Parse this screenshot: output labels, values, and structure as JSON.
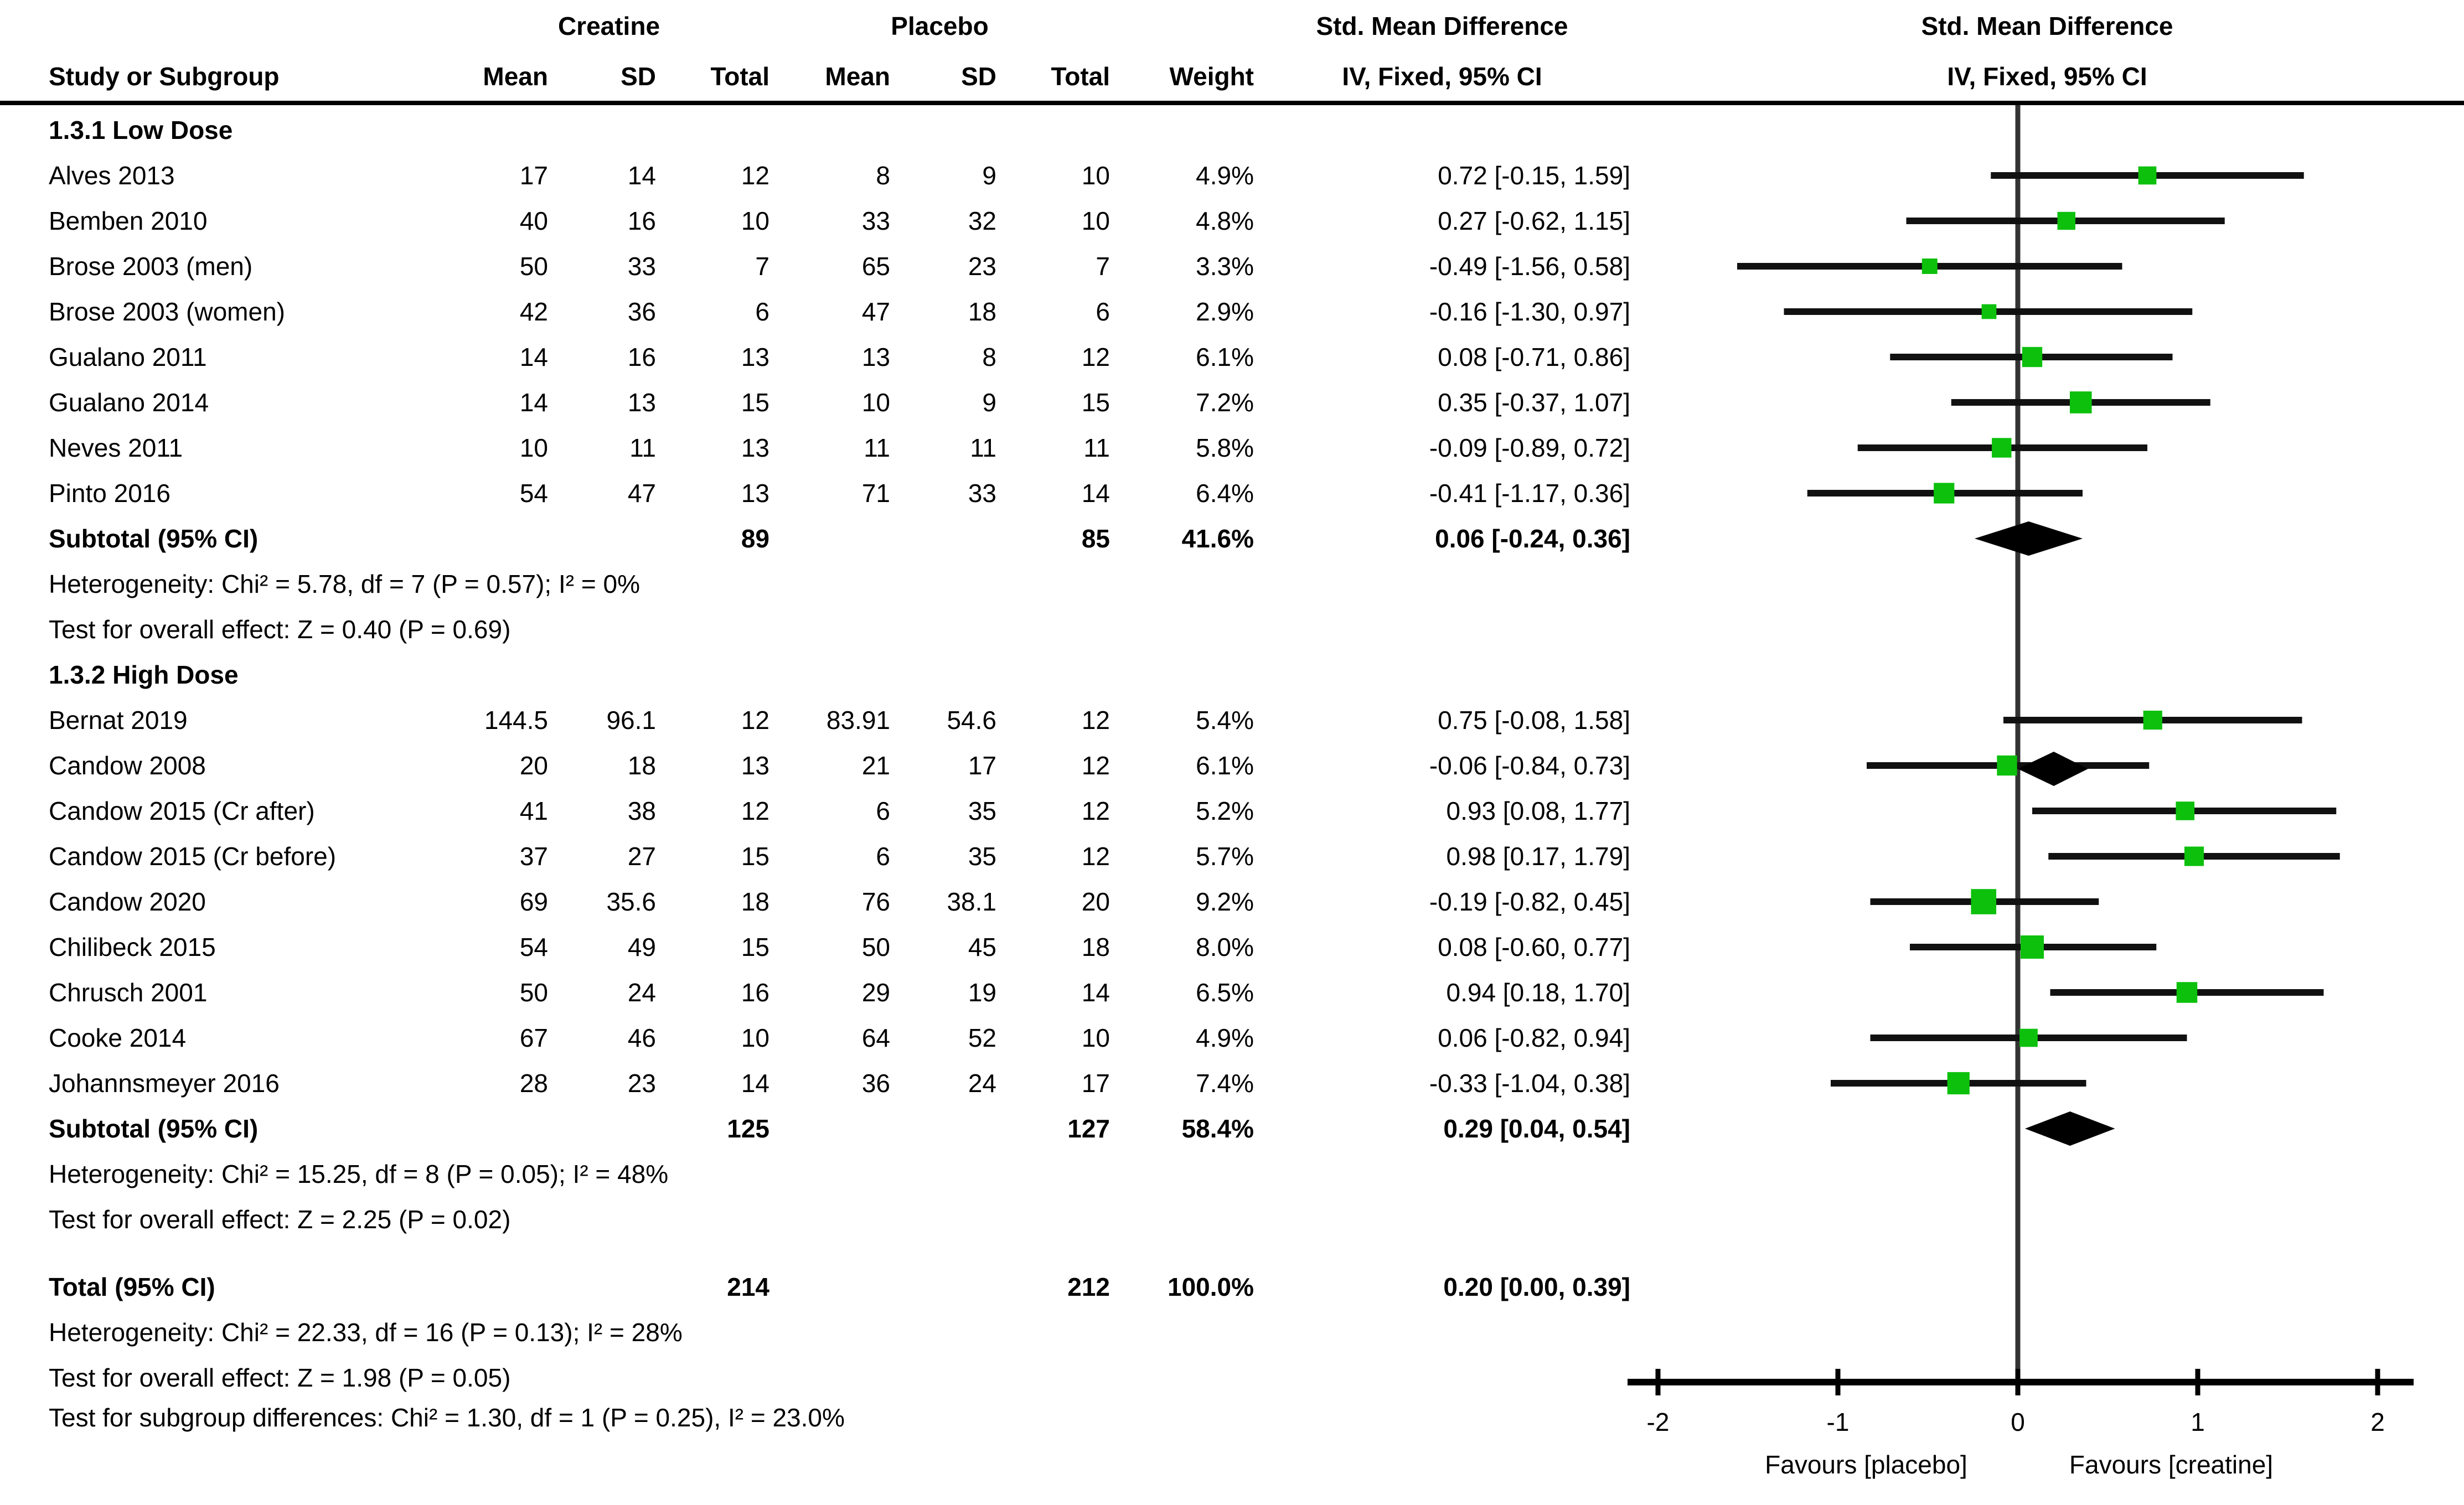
{
  "header": {
    "study_col": "Study or Subgroup",
    "creatine_group": "Creatine",
    "placebo_group": "Placebo",
    "smd_left": "Std. Mean Difference",
    "smd_right": "Std. Mean Difference",
    "mean": "Mean",
    "sd": "SD",
    "total": "Total",
    "weight": "Weight",
    "method_left": "IV, Fixed, 95% CI",
    "method_right": "IV, Fixed, 95% CI"
  },
  "colors": {
    "marker_green": "#0cc00c",
    "text": "#000000",
    "ci_line": "#111111",
    "zero_line": "#333333",
    "diamond": "#000000"
  },
  "chart_data": {
    "type": "forest",
    "effect_measure": "Std. Mean Difference, IV, Fixed, 95% CI",
    "axis": {
      "min": -2,
      "max": 2,
      "ticks": [
        -2,
        -1,
        0,
        1,
        2
      ],
      "tick_labels": [
        "-2",
        "-1",
        "0",
        "1",
        "2"
      ],
      "label_left": "Favours [placebo]",
      "label_right": "Favours [creatine]"
    },
    "groups": [
      {
        "label": "1.3.1 Low Dose",
        "studies": [
          {
            "name": "Alves 2013",
            "c_mean": "17",
            "c_sd": "14",
            "c_total": "12",
            "p_mean": "8",
            "p_sd": "9",
            "p_total": "10",
            "weight": "4.9%",
            "weight_pct": 4.9,
            "smd_text": "0.72 [-0.15, 1.59]",
            "est": 0.72,
            "lo": -0.15,
            "hi": 1.59
          },
          {
            "name": "Bemben 2010",
            "c_mean": "40",
            "c_sd": "16",
            "c_total": "10",
            "p_mean": "33",
            "p_sd": "32",
            "p_total": "10",
            "weight": "4.8%",
            "weight_pct": 4.8,
            "smd_text": "0.27 [-0.62, 1.15]",
            "est": 0.27,
            "lo": -0.62,
            "hi": 1.15
          },
          {
            "name": "Brose 2003 (men)",
            "c_mean": "50",
            "c_sd": "33",
            "c_total": "7",
            "p_mean": "65",
            "p_sd": "23",
            "p_total": "7",
            "weight": "3.3%",
            "weight_pct": 3.3,
            "smd_text": "-0.49 [-1.56, 0.58]",
            "est": -0.49,
            "lo": -1.56,
            "hi": 0.58
          },
          {
            "name": "Brose 2003 (women)",
            "c_mean": "42",
            "c_sd": "36",
            "c_total": "6",
            "p_mean": "47",
            "p_sd": "18",
            "p_total": "6",
            "weight": "2.9%",
            "weight_pct": 2.9,
            "smd_text": "-0.16 [-1.30, 0.97]",
            "est": -0.16,
            "lo": -1.3,
            "hi": 0.97
          },
          {
            "name": "Gualano 2011",
            "c_mean": "14",
            "c_sd": "16",
            "c_total": "13",
            "p_mean": "13",
            "p_sd": "8",
            "p_total": "12",
            "weight": "6.1%",
            "weight_pct": 6.1,
            "smd_text": "0.08 [-0.71, 0.86]",
            "est": 0.08,
            "lo": -0.71,
            "hi": 0.86
          },
          {
            "name": "Gualano 2014",
            "c_mean": "14",
            "c_sd": "13",
            "c_total": "15",
            "p_mean": "10",
            "p_sd": "9",
            "p_total": "15",
            "weight": "7.2%",
            "weight_pct": 7.2,
            "smd_text": "0.35 [-0.37, 1.07]",
            "est": 0.35,
            "lo": -0.37,
            "hi": 1.07
          },
          {
            "name": "Neves 2011",
            "c_mean": "10",
            "c_sd": "11",
            "c_total": "13",
            "p_mean": "11",
            "p_sd": "11",
            "p_total": "11",
            "weight": "5.8%",
            "weight_pct": 5.8,
            "smd_text": "-0.09 [-0.89, 0.72]",
            "est": -0.09,
            "lo": -0.89,
            "hi": 0.72
          },
          {
            "name": "Pinto 2016",
            "c_mean": "54",
            "c_sd": "47",
            "c_total": "13",
            "p_mean": "71",
            "p_sd": "33",
            "p_total": "14",
            "weight": "6.4%",
            "weight_pct": 6.4,
            "smd_text": "-0.41 [-1.17, 0.36]",
            "est": -0.41,
            "lo": -1.17,
            "hi": 0.36
          }
        ],
        "subtotal": {
          "label": "Subtotal (95% CI)",
          "c_total": "89",
          "p_total": "85",
          "weight": "41.6%",
          "smd_text": "0.06 [-0.24, 0.36]",
          "est": 0.06,
          "lo": -0.24,
          "hi": 0.36
        },
        "heterogeneity": "Heterogeneity: Chi² = 5.78, df = 7 (P = 0.57); I² = 0%",
        "overall_test": "Test for overall effect: Z = 0.40 (P = 0.69)"
      },
      {
        "label": "1.3.2 High Dose",
        "studies": [
          {
            "name": "Bernat 2019",
            "c_mean": "144.5",
            "c_sd": "96.1",
            "c_total": "12",
            "p_mean": "83.91",
            "p_sd": "54.6",
            "p_total": "12",
            "weight": "5.4%",
            "weight_pct": 5.4,
            "smd_text": "0.75 [-0.08, 1.58]",
            "est": 0.75,
            "lo": -0.08,
            "hi": 1.58
          },
          {
            "name": "Candow 2008",
            "c_mean": "20",
            "c_sd": "18",
            "c_total": "13",
            "p_mean": "21",
            "p_sd": "17",
            "p_total": "12",
            "weight": "6.1%",
            "weight_pct": 6.1,
            "smd_text": "-0.06 [-0.84, 0.73]",
            "est": -0.06,
            "lo": -0.84,
            "hi": 0.73
          },
          {
            "name": "Candow 2015 (Cr after)",
            "c_mean": "41",
            "c_sd": "38",
            "c_total": "12",
            "p_mean": "6",
            "p_sd": "35",
            "p_total": "12",
            "weight": "5.2%",
            "weight_pct": 5.2,
            "smd_text": "0.93 [0.08, 1.77]",
            "est": 0.93,
            "lo": 0.08,
            "hi": 1.77
          },
          {
            "name": "Candow 2015 (Cr before)",
            "c_mean": "37",
            "c_sd": "27",
            "c_total": "15",
            "p_mean": "6",
            "p_sd": "35",
            "p_total": "12",
            "weight": "5.7%",
            "weight_pct": 5.7,
            "smd_text": "0.98 [0.17, 1.79]",
            "est": 0.98,
            "lo": 0.17,
            "hi": 1.79
          },
          {
            "name": "Candow 2020",
            "c_mean": "69",
            "c_sd": "35.6",
            "c_total": "18",
            "p_mean": "76",
            "p_sd": "38.1",
            "p_total": "20",
            "weight": "9.2%",
            "weight_pct": 9.2,
            "smd_text": "-0.19 [-0.82, 0.45]",
            "est": -0.19,
            "lo": -0.82,
            "hi": 0.45
          },
          {
            "name": "Chilibeck 2015",
            "c_mean": "54",
            "c_sd": "49",
            "c_total": "15",
            "p_mean": "50",
            "p_sd": "45",
            "p_total": "18",
            "weight": "8.0%",
            "weight_pct": 8.0,
            "smd_text": "0.08 [-0.60, 0.77]",
            "est": 0.08,
            "lo": -0.6,
            "hi": 0.77
          },
          {
            "name": "Chrusch 2001",
            "c_mean": "50",
            "c_sd": "24",
            "c_total": "16",
            "p_mean": "29",
            "p_sd": "19",
            "p_total": "14",
            "weight": "6.5%",
            "weight_pct": 6.5,
            "smd_text": "0.94 [0.18, 1.70]",
            "est": 0.94,
            "lo": 0.18,
            "hi": 1.7
          },
          {
            "name": "Cooke 2014",
            "c_mean": "67",
            "c_sd": "46",
            "c_total": "10",
            "p_mean": "64",
            "p_sd": "52",
            "p_total": "10",
            "weight": "4.9%",
            "weight_pct": 4.9,
            "smd_text": "0.06 [-0.82, 0.94]",
            "est": 0.06,
            "lo": -0.82,
            "hi": 0.94
          },
          {
            "name": "Johannsmeyer 2016",
            "c_mean": "28",
            "c_sd": "23",
            "c_total": "14",
            "p_mean": "36",
            "p_sd": "24",
            "p_total": "17",
            "weight": "7.4%",
            "weight_pct": 7.4,
            "smd_text": "-0.33 [-1.04, 0.38]",
            "est": -0.33,
            "lo": -1.04,
            "hi": 0.38
          }
        ],
        "subtotal": {
          "label": "Subtotal (95% CI)",
          "c_total": "125",
          "p_total": "127",
          "weight": "58.4%",
          "smd_text": "0.29 [0.04, 0.54]",
          "est": 0.29,
          "lo": 0.04,
          "hi": 0.54
        },
        "heterogeneity": "Heterogeneity: Chi² = 15.25, df = 8 (P = 0.05); I² = 48%",
        "overall_test": "Test for overall effect: Z = 2.25 (P = 0.02)"
      }
    ],
    "total": {
      "label": "Total (95% CI)",
      "c_total": "214",
      "p_total": "212",
      "weight": "100.0%",
      "smd_text": "0.20 [0.00, 0.39]",
      "est": 0.2,
      "lo": 0.0,
      "hi": 0.39,
      "heterogeneity": "Heterogeneity: Chi² = 22.33, df = 16 (P = 0.13); I² = 28%",
      "overall_test": "Test for overall effect: Z = 1.98 (P = 0.05)",
      "subgroup_test": "Test for subgroup differences: Chi² = 1.30, df = 1 (P = 0.25), I² = 23.0%"
    }
  }
}
